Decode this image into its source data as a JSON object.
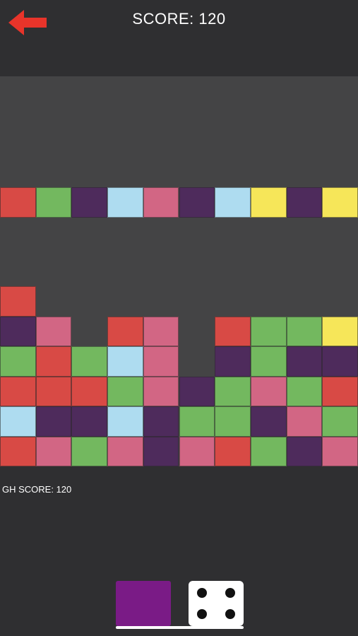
{
  "header": {
    "back_icon": "back-arrow-icon",
    "score_text": "SCORE: 120"
  },
  "colors": {
    "R": "#d84a45",
    "G": "#73b85f",
    "P": "#4e2b5c",
    "L": "#aedcf0",
    "K": "#d26684",
    "Y": "#f6e659",
    "background": "#2f2f31",
    "board": "#444445",
    "next_block": "#7a1b86"
  },
  "board": {
    "falling_row": [
      "R",
      "G",
      "P",
      "L",
      "K",
      "P",
      "L",
      "Y",
      "P",
      "Y"
    ],
    "stack_columns": [
      [
        "R",
        "L",
        "R",
        "G",
        "P",
        "R"
      ],
      [
        "K",
        "P",
        "R",
        "R",
        "K"
      ],
      [
        "G",
        "P",
        "R",
        "G"
      ],
      [
        "K",
        "L",
        "G",
        "L",
        "R"
      ],
      [
        "P",
        "P",
        "K",
        "K",
        "K"
      ],
      [
        "K",
        "G",
        "P"
      ],
      [
        "R",
        "G",
        "G",
        "P",
        "R"
      ],
      [
        "G",
        "P",
        "K",
        "G",
        "G"
      ],
      [
        "P",
        "K",
        "G",
        "P",
        "G"
      ],
      [
        "K",
        "G",
        "R",
        "P",
        "Y"
      ]
    ]
  },
  "high_score_text": "GH SCORE: 120",
  "controls": {
    "next_block_color": "P_bright",
    "dice_icon": "dice-four-icon"
  }
}
